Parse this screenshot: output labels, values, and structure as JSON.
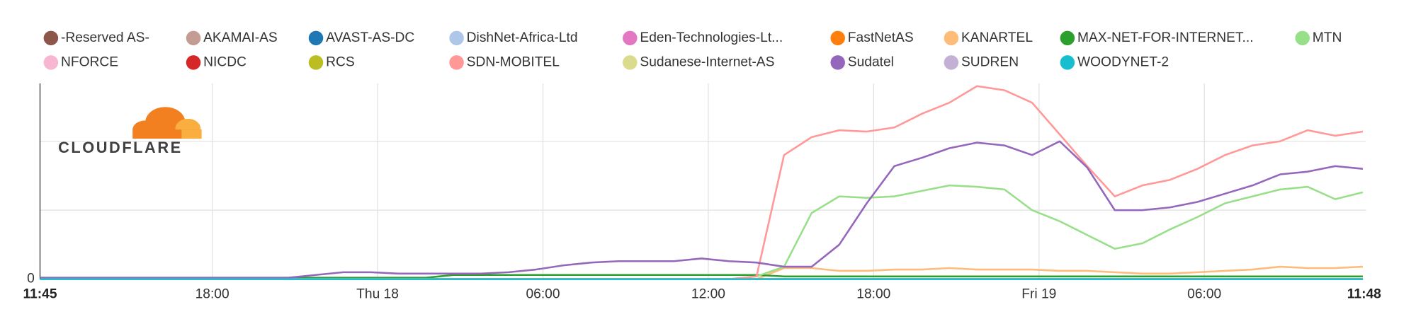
{
  "logo_text": "CLOUDFLARE",
  "chart_data": {
    "type": "line",
    "x": [
      0,
      1,
      2,
      3,
      4,
      5,
      6,
      7,
      8,
      9,
      10,
      11,
      12,
      13,
      14,
      15,
      16,
      17,
      18,
      19,
      20,
      21,
      22,
      23,
      24,
      25,
      26,
      27,
      28,
      29,
      30,
      31,
      32,
      33,
      34,
      35,
      36,
      37,
      38,
      39,
      40,
      41,
      42,
      43,
      44,
      45,
      46,
      47,
      48
    ],
    "xlim": [
      0,
      48.05
    ],
    "xticks": [
      {
        "value": 0,
        "label": "11:45"
      },
      {
        "value": 6.25,
        "label": "18:00"
      },
      {
        "value": 12.25,
        "label": "Thu 18"
      },
      {
        "value": 18.25,
        "label": "06:00"
      },
      {
        "value": 24.25,
        "label": "12:00"
      },
      {
        "value": 30.25,
        "label": "18:00"
      },
      {
        "value": 36.25,
        "label": "Fri 19"
      },
      {
        "value": 42.25,
        "label": "06:00"
      },
      {
        "value": 48.05,
        "label": "11:48"
      }
    ],
    "ylim": [
      0,
      142
    ],
    "yticks": [
      0
    ],
    "gridlines": [
      50,
      100
    ],
    "series": [
      {
        "name": "-Reserved AS-",
        "color": "#8c564b",
        "values": [
          0,
          0,
          0,
          0,
          0,
          0,
          0,
          0,
          0,
          0,
          0,
          0,
          0,
          0,
          0,
          0,
          0,
          0,
          0,
          0,
          0,
          0,
          0,
          0,
          0,
          0,
          0,
          0,
          0,
          0,
          0,
          0,
          0,
          0,
          0,
          0,
          0,
          0,
          0,
          0,
          0,
          0,
          0,
          0,
          0,
          0,
          0,
          0,
          0
        ]
      },
      {
        "name": "AKAMAI-AS",
        "color": "#c49c94",
        "values": [
          0,
          0,
          0,
          0,
          0,
          0,
          0,
          0,
          0,
          0,
          0,
          0,
          0,
          0,
          0,
          0,
          0,
          0,
          0,
          0,
          0,
          0,
          0,
          0,
          0,
          0,
          0,
          0,
          0,
          0,
          0,
          0,
          0,
          0,
          0,
          0,
          0,
          0,
          0,
          0,
          0,
          0,
          0,
          0,
          0,
          0,
          0,
          0,
          0
        ]
      },
      {
        "name": "AVAST-AS-DC",
        "color": "#1f77b4",
        "values": [
          0,
          0,
          0,
          0,
          0,
          0,
          0,
          0,
          0,
          0,
          0,
          0,
          0,
          0,
          0,
          0,
          0,
          0,
          0,
          0,
          0,
          0,
          0,
          0,
          0,
          0,
          0,
          0,
          0,
          0,
          0,
          0,
          0,
          0,
          0,
          0,
          0,
          0,
          0,
          0,
          0,
          0,
          0,
          0,
          0,
          0,
          0,
          0,
          0
        ]
      },
      {
        "name": "DishNet-Africa-Ltd",
        "color": "#aec7e8",
        "values": [
          0,
          0,
          0,
          0,
          0,
          0,
          0,
          0,
          0,
          0,
          0,
          0,
          0,
          0,
          0,
          0,
          0,
          0,
          0,
          0,
          0,
          0,
          0,
          0,
          0,
          0,
          0,
          0,
          0,
          0,
          0,
          0,
          0,
          0,
          0,
          0,
          0,
          0,
          0,
          0,
          0,
          0,
          0,
          0,
          0,
          0,
          0,
          0,
          0
        ]
      },
      {
        "name": "Eden-Technologies-Lt...",
        "color": "#e377c2",
        "values": [
          0,
          0,
          0,
          0,
          0,
          0,
          0,
          0,
          0,
          0,
          0,
          0,
          0,
          0,
          0,
          0,
          0,
          0,
          0,
          0,
          0,
          0,
          0,
          0,
          0,
          0,
          0,
          0,
          0,
          0,
          0,
          0,
          0,
          0,
          0,
          0,
          0,
          0,
          0,
          0,
          0,
          0,
          0,
          0,
          0,
          0,
          0,
          0,
          0
        ]
      },
      {
        "name": "FastNetAS",
        "color": "#ff7f0e",
        "values": [
          0,
          0,
          0,
          0,
          0,
          0,
          0,
          0,
          0,
          0,
          0,
          0,
          0,
          0,
          0,
          0,
          0,
          0,
          0,
          0,
          0,
          0,
          0,
          0,
          0,
          0,
          0,
          0,
          0,
          0,
          0,
          0,
          0,
          0,
          0,
          0,
          0,
          0,
          0,
          0,
          0,
          0,
          0,
          0,
          0,
          0,
          0,
          0,
          0
        ]
      },
      {
        "name": "KANARTEL",
        "color": "#ffbb78",
        "values": [
          0,
          0,
          0,
          0,
          0,
          0,
          0,
          0,
          0,
          0,
          0,
          0,
          0,
          0,
          0,
          0,
          0,
          0,
          0,
          0,
          0,
          0,
          0,
          0,
          0,
          0,
          0,
          8,
          8,
          6,
          6,
          7,
          7,
          8,
          7,
          7,
          7,
          6,
          6,
          5,
          4,
          4,
          5,
          6,
          7,
          9,
          8,
          8,
          9
        ]
      },
      {
        "name": "MAX-NET-FOR-INTERNET...",
        "color": "#2ca02c",
        "values": [
          1,
          1,
          1,
          1,
          1,
          1,
          1,
          1,
          1,
          1,
          1,
          1,
          1,
          1,
          1,
          3,
          3,
          3,
          3,
          3,
          3,
          3,
          3,
          3,
          3,
          3,
          3,
          2,
          2,
          2,
          2,
          2,
          2,
          2,
          2,
          2,
          2,
          2,
          2,
          2,
          2,
          2,
          2,
          2,
          2,
          2,
          2,
          2,
          2
        ]
      },
      {
        "name": "MTN",
        "color": "#98df8a",
        "values": [
          0,
          0,
          0,
          0,
          0,
          0,
          0,
          0,
          0,
          0,
          0,
          0,
          0,
          0,
          0,
          0,
          0,
          0,
          0,
          0,
          0,
          0,
          0,
          0,
          0,
          0,
          2,
          9,
          48,
          60,
          59,
          60,
          64,
          68,
          67,
          65,
          50,
          42,
          32,
          22,
          26,
          36,
          45,
          55,
          60,
          65,
          67,
          58,
          63
        ]
      },
      {
        "name": "NFORCE",
        "color": "#f7b6d2",
        "values": [
          0,
          0,
          0,
          0,
          0,
          0,
          0,
          0,
          0,
          0,
          0,
          0,
          0,
          0,
          0,
          0,
          0,
          0,
          0,
          0,
          0,
          0,
          0,
          0,
          0,
          0,
          0,
          0,
          0,
          0,
          0,
          0,
          0,
          0,
          0,
          0,
          0,
          0,
          0,
          0,
          0,
          0,
          0,
          0,
          0,
          0,
          0,
          0,
          0
        ]
      },
      {
        "name": "NICDC",
        "color": "#d62728",
        "values": [
          0,
          0,
          0,
          0,
          0,
          0,
          0,
          0,
          0,
          0,
          0,
          0,
          0,
          0,
          0,
          0,
          0,
          0,
          0,
          0,
          0,
          0,
          0,
          0,
          0,
          0,
          0,
          0,
          0,
          0,
          0,
          0,
          0,
          0,
          0,
          0,
          0,
          0,
          0,
          0,
          0,
          0,
          0,
          0,
          0,
          0,
          0,
          0,
          0
        ]
      },
      {
        "name": "RCS",
        "color": "#bcbd22",
        "values": [
          0,
          0,
          0,
          0,
          0,
          0,
          0,
          0,
          0,
          0,
          0,
          0,
          0,
          0,
          0,
          0,
          0,
          0,
          0,
          0,
          0,
          0,
          0,
          0,
          0,
          0,
          0,
          0,
          0,
          0,
          0,
          0,
          0,
          0,
          0,
          0,
          0,
          0,
          0,
          0,
          0,
          0,
          0,
          0,
          0,
          0,
          0,
          0,
          0
        ]
      },
      {
        "name": "SDN-MOBITEL",
        "color": "#ff9896",
        "values": [
          0,
          0,
          0,
          0,
          0,
          0,
          0,
          0,
          0,
          0,
          0,
          0,
          0,
          0,
          0,
          0,
          0,
          0,
          0,
          0,
          0,
          0,
          0,
          0,
          0,
          0,
          2,
          90,
          103,
          108,
          107,
          110,
          120,
          128,
          140,
          137,
          128,
          105,
          82,
          60,
          68,
          72,
          80,
          90,
          97,
          100,
          108,
          104,
          107
        ]
      },
      {
        "name": "Sudanese-Internet-AS",
        "color": "#dbdb8d",
        "values": [
          0,
          0,
          0,
          0,
          0,
          0,
          0,
          0,
          0,
          0,
          0,
          0,
          0,
          0,
          0,
          0,
          0,
          0,
          0,
          0,
          0,
          0,
          0,
          0,
          0,
          0,
          0,
          0,
          0,
          0,
          0,
          0,
          0,
          0,
          0,
          0,
          0,
          0,
          0,
          0,
          0,
          0,
          0,
          0,
          0,
          0,
          0,
          0,
          0
        ]
      },
      {
        "name": "Sudatel",
        "color": "#9467bd",
        "values": [
          1,
          1,
          1,
          1,
          1,
          1,
          1,
          1,
          1,
          1,
          3,
          5,
          5,
          4,
          4,
          4,
          4,
          5,
          7,
          10,
          12,
          13,
          13,
          13,
          15,
          13,
          12,
          9,
          9,
          25,
          55,
          82,
          88,
          95,
          99,
          97,
          90,
          100,
          81,
          50,
          50,
          52,
          56,
          62,
          68,
          76,
          78,
          82,
          80
        ]
      },
      {
        "name": "SUDREN",
        "color": "#c5b0d5",
        "values": [
          0,
          0,
          0,
          0,
          0,
          0,
          0,
          0,
          0,
          0,
          0,
          0,
          0,
          0,
          0,
          0,
          0,
          0,
          0,
          0,
          0,
          0,
          0,
          0,
          0,
          0,
          0,
          0,
          0,
          0,
          0,
          0,
          0,
          0,
          0,
          0,
          0,
          0,
          0,
          0,
          0,
          0,
          0,
          0,
          0,
          0,
          0,
          0,
          0
        ]
      },
      {
        "name": "WOODYNET-2",
        "color": "#17becf",
        "values": [
          0,
          0,
          0,
          0,
          0,
          0,
          0,
          0,
          0,
          0,
          0,
          0,
          0,
          0,
          0,
          0,
          0,
          0,
          0,
          0,
          0,
          0,
          0,
          0,
          0,
          0,
          0,
          0,
          0,
          0,
          0,
          0,
          0,
          0,
          0,
          0,
          0,
          0,
          0,
          0,
          0,
          0,
          0,
          0,
          0,
          0,
          0,
          0,
          0
        ]
      }
    ]
  }
}
